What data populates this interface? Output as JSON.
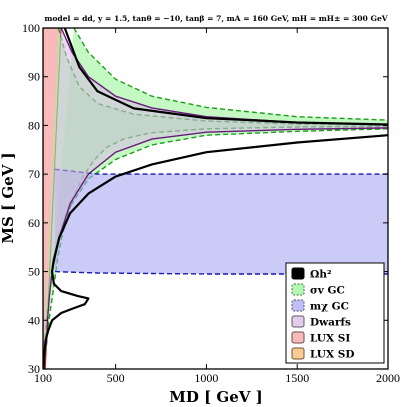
{
  "chart_data": {
    "type": "area",
    "title": "model = dd, y = 1.5, tanθ = −10, tanβ = 7, mA = 160 GeV, mH = mH± = 300 GeV",
    "xlabel": "MD [ GeV ]",
    "ylabel": "MS [ GeV ]",
    "xlim": [
      100,
      2000
    ],
    "ylim": [
      30,
      100
    ],
    "xticks": [
      100,
      500,
      1000,
      1500,
      2000
    ],
    "yticks": [
      30,
      40,
      50,
      60,
      70,
      80,
      90,
      100
    ],
    "grid": false,
    "legend_position": "bottom-right",
    "legend": [
      {
        "label": "Ωh²",
        "color": "#000000"
      },
      {
        "label": "σv GC",
        "color": "#9cf59c"
      },
      {
        "label": "mχ GC",
        "color": "#a9a9f2"
      },
      {
        "label": "Dwarfs",
        "color": "#d9bce6"
      },
      {
        "label": "LUX SI",
        "color": "#f5a3a3"
      },
      {
        "label": "LUX SD",
        "color": "#f5b971"
      }
    ],
    "series": [
      {
        "name": "Ωh²",
        "kind": "line",
        "color": "#000000",
        "points": [
          [
            220,
            100
          ],
          [
            300,
            92
          ],
          [
            400,
            87
          ],
          [
            600,
            83.5
          ],
          [
            1000,
            81.5
          ],
          [
            1500,
            80.6
          ],
          [
            2000,
            80.2
          ]
        ]
      },
      {
        "name": "Ωh²",
        "kind": "line",
        "color": "#000000",
        "points": [
          [
            2000,
            78
          ],
          [
            1500,
            76.5
          ],
          [
            1000,
            74.5
          ],
          [
            700,
            72
          ],
          [
            500,
            69.5
          ],
          [
            350,
            66
          ],
          [
            250,
            62
          ],
          [
            190,
            57
          ],
          [
            160,
            52.5
          ],
          [
            150,
            50
          ],
          [
            160,
            47.5
          ],
          [
            200,
            46
          ],
          [
            290,
            45
          ],
          [
            350,
            44.5
          ],
          [
            330,
            43.3
          ],
          [
            270,
            42.5
          ],
          [
            200,
            41.5
          ],
          [
            150,
            40
          ],
          [
            130,
            38
          ],
          [
            115,
            36
          ],
          [
            108,
            33.5
          ],
          [
            104,
            31
          ],
          [
            102,
            30
          ]
        ]
      },
      {
        "name": "σv GC",
        "kind": "band",
        "color": "#9cf59c",
        "upper": [
          [
            270,
            100
          ],
          [
            350,
            95
          ],
          [
            500,
            89.5
          ],
          [
            700,
            86
          ],
          [
            1000,
            83.7
          ],
          [
            1500,
            81.8
          ],
          [
            2000,
            81.1
          ]
        ],
        "lower": [
          [
            2000,
            79.3
          ],
          [
            1500,
            78.8
          ],
          [
            1000,
            78
          ],
          [
            700,
            76
          ],
          [
            500,
            73
          ],
          [
            350,
            69
          ],
          [
            260,
            64
          ],
          [
            200,
            59.5
          ],
          [
            170,
            55
          ],
          [
            150,
            51
          ],
          [
            140,
            48
          ],
          [
            130,
            44
          ],
          [
            120,
            40
          ],
          [
            110,
            35
          ],
          [
            102,
            30
          ]
        ]
      },
      {
        "name": "σv GC",
        "kind": "band",
        "color": "#9cf59c",
        "upper": [
          [
            185,
            100
          ],
          [
            230,
            94
          ],
          [
            300,
            88
          ],
          [
            400,
            84.5
          ],
          [
            600,
            82.3
          ],
          [
            1000,
            80.9
          ],
          [
            1500,
            80.3
          ],
          [
            2000,
            80.1
          ]
        ],
        "lower": [
          [
            2000,
            79.8
          ],
          [
            1500,
            79.7
          ],
          [
            1000,
            79.3
          ],
          [
            700,
            78.5
          ],
          [
            550,
            77.3
          ],
          [
            450,
            75.5
          ],
          [
            380,
            72.8
          ],
          [
            320,
            69.5
          ],
          [
            270,
            65.5
          ],
          [
            230,
            61
          ],
          [
            200,
            56.5
          ],
          [
            180,
            52.5
          ],
          [
            160,
            47
          ],
          [
            140,
            42
          ],
          [
            120,
            36
          ],
          [
            105,
            31
          ],
          [
            102,
            30
          ]
        ]
      },
      {
        "name": "mχ GC",
        "kind": "band",
        "color": "#a9a9f2",
        "upper": [
          [
            165,
            71
          ],
          [
            400,
            70
          ],
          [
            1000,
            70
          ],
          [
            2000,
            70
          ]
        ],
        "lower": [
          [
            2000,
            49.5
          ],
          [
            1000,
            49.5
          ],
          [
            400,
            49.7
          ],
          [
            165,
            50
          ]
        ]
      },
      {
        "name": "Dwarfs",
        "kind": "band",
        "color": "#d9bce6",
        "upper": [
          [
            200,
            100
          ],
          [
            260,
            95
          ],
          [
            350,
            90
          ],
          [
            500,
            86
          ],
          [
            700,
            83.6
          ],
          [
            1000,
            81.8
          ],
          [
            1500,
            80.6
          ],
          [
            2000,
            80.1
          ]
        ],
        "lower": [
          [
            2000,
            79.5
          ],
          [
            1500,
            79.2
          ],
          [
            1000,
            78.6
          ],
          [
            700,
            77.2
          ],
          [
            500,
            74.5
          ],
          [
            350,
            70
          ],
          [
            250,
            64
          ],
          [
            190,
            57
          ],
          [
            150,
            50
          ],
          [
            135,
            45
          ],
          [
            125,
            40
          ],
          [
            120,
            35
          ]
        ]
      },
      {
        "name": "LUX SI",
        "kind": "region",
        "color": "#f5a3a3",
        "boundary": [
          [
            100,
            30
          ],
          [
            100,
            100
          ],
          [
            200,
            100
          ],
          [
            112,
            30
          ]
        ]
      },
      {
        "name": "LUX SD",
        "kind": "region",
        "color": "#f5b971",
        "boundary": [
          [
            103,
            30
          ],
          [
            103,
            33
          ],
          [
            108,
            33
          ],
          [
            110,
            30
          ]
        ]
      }
    ]
  }
}
